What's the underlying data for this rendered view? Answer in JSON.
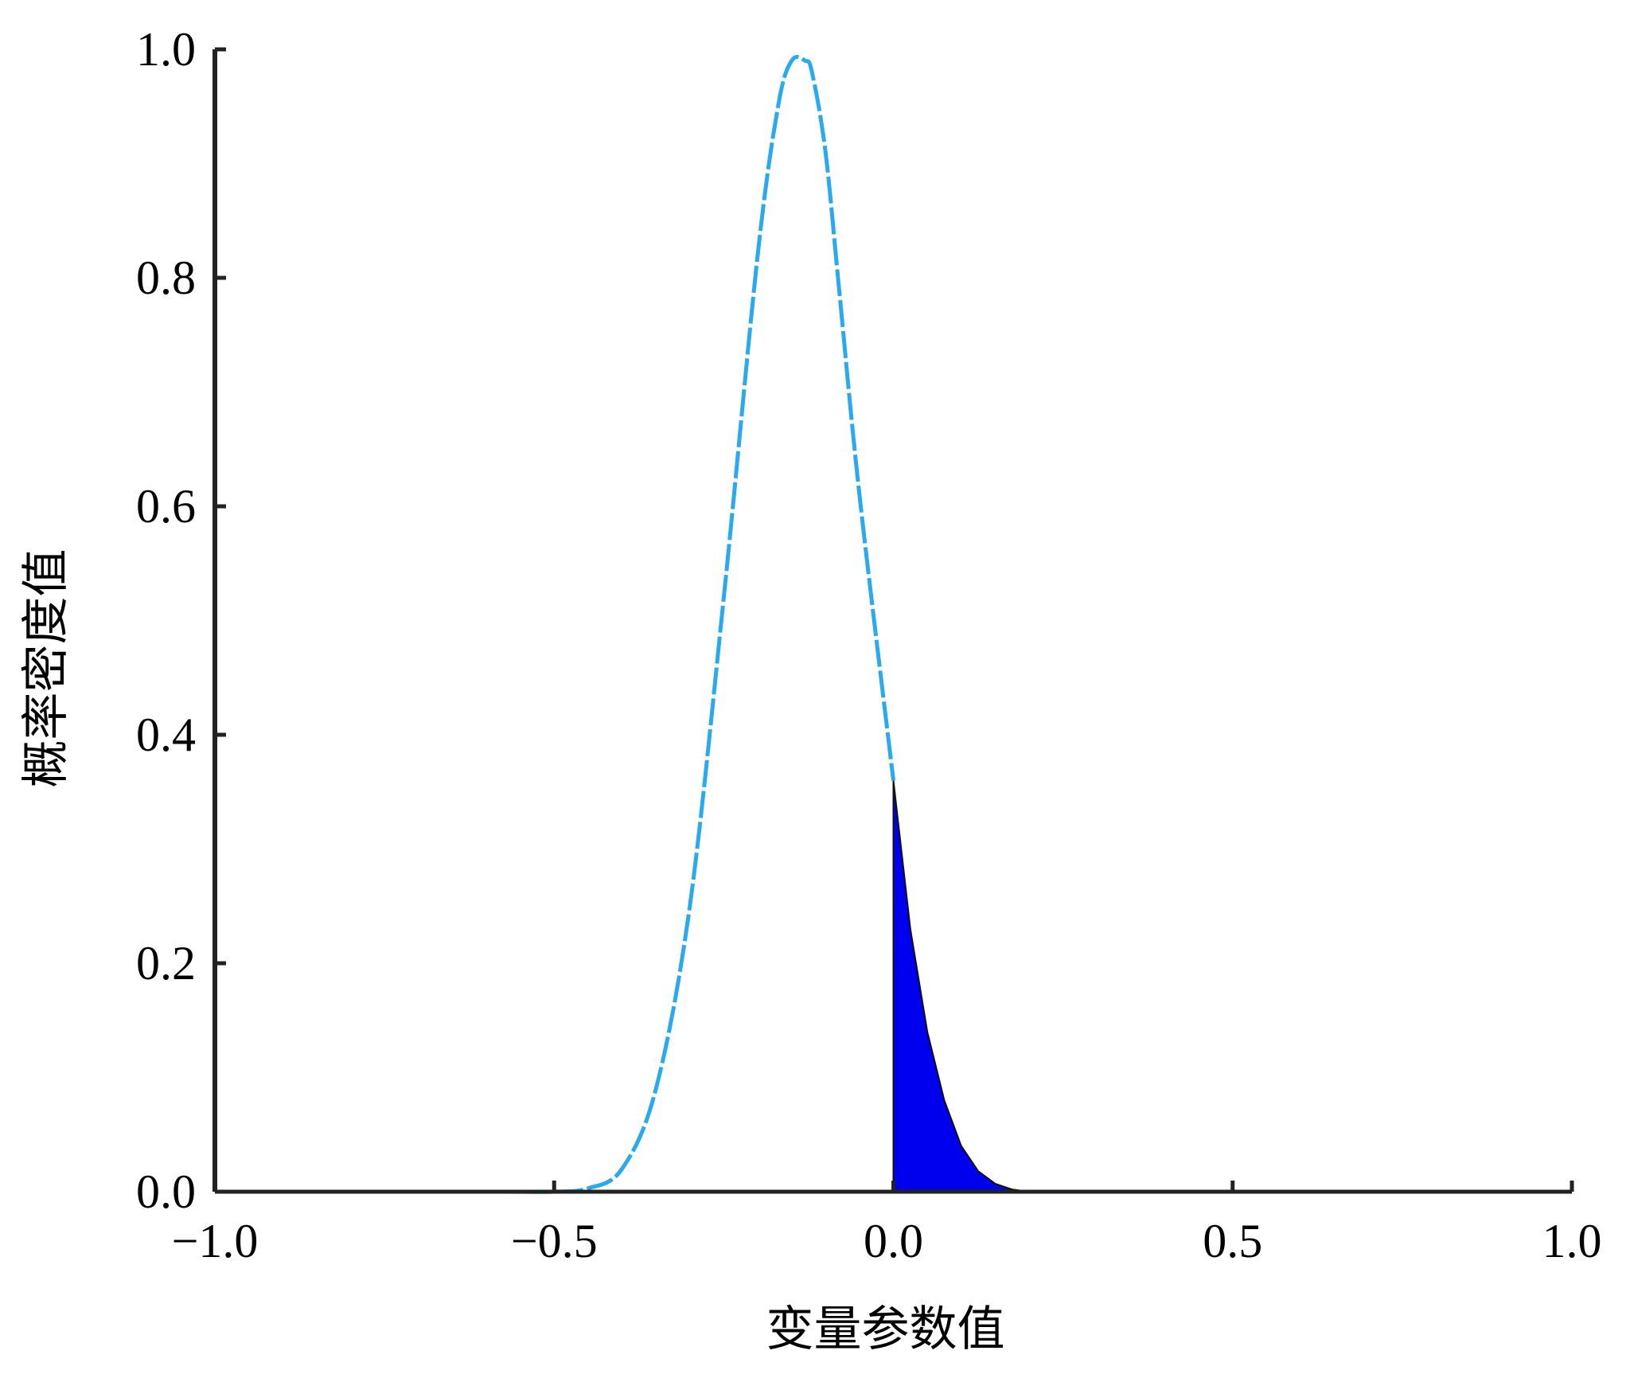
{
  "chart_data": {
    "type": "line",
    "title": "",
    "xlabel": "变量参数值",
    "ylabel": "概率密度值",
    "xlim": [
      -1.0,
      1.0
    ],
    "ylim": [
      0.0,
      1.0
    ],
    "grid": false,
    "x_ticks": [
      {
        "value": -1.0,
        "label": "−1.0"
      },
      {
        "value": -0.5,
        "label": "−0.5"
      },
      {
        "value": 0.0,
        "label": "0.0"
      },
      {
        "value": 0.5,
        "label": "0.5"
      },
      {
        "value": 1.0,
        "label": "1.0"
      }
    ],
    "y_ticks": [
      {
        "value": 0.0,
        "label": "0.0"
      },
      {
        "value": 0.2,
        "label": "0.2"
      },
      {
        "value": 0.4,
        "label": "0.4"
      },
      {
        "value": 0.6,
        "label": "0.6"
      },
      {
        "value": 0.8,
        "label": "0.8"
      },
      {
        "value": 1.0,
        "label": "1.0"
      }
    ],
    "series": [
      {
        "color": "#29a9ee",
        "style": "dashed",
        "x": [
          -1.0,
          -0.6,
          -0.5,
          -0.45,
          -0.4,
          -0.35,
          -0.3,
          -0.25,
          -0.2,
          -0.17,
          -0.15,
          -0.13,
          -0.12,
          -0.1,
          -0.08,
          -0.05,
          0.0
        ],
        "y": [
          0.0,
          0.0,
          0.0,
          0.003,
          0.02,
          0.09,
          0.25,
          0.52,
          0.82,
          0.95,
          0.99,
          0.99,
          0.98,
          0.91,
          0.79,
          0.61,
          0.36
        ]
      }
    ],
    "shaded_region": {
      "color": "#0000ee",
      "x": [
        0.0,
        0.025,
        0.05,
        0.075,
        0.1,
        0.125,
        0.15,
        0.175,
        0.2
      ],
      "y": [
        0.36,
        0.23,
        0.14,
        0.08,
        0.04,
        0.018,
        0.007,
        0.002,
        0.0
      ]
    },
    "baseline": {
      "color": "#555555",
      "x": [
        -0.6,
        1.0
      ],
      "y": [
        0.0,
        0.0
      ]
    }
  }
}
